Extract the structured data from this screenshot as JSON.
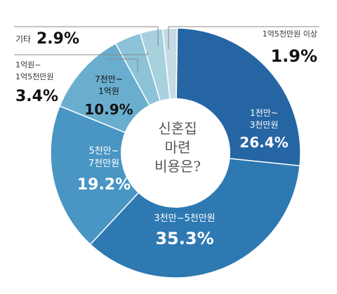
{
  "chart_data": {
    "type": "pie",
    "donut": true,
    "center_label": [
      "신혼집",
      "마련",
      "비용은?"
    ],
    "slices": [
      {
        "label": "1억5천만원 이상",
        "value": 1.9,
        "value_text": "1.9%",
        "color": "#c5dbe4"
      },
      {
        "label": "1천만~ 3천만원",
        "value": 26.4,
        "value_text": "26.4%",
        "color": "#2565a3"
      },
      {
        "label": "3천만~5천만원",
        "value": 35.3,
        "value_text": "35.3%",
        "color": "#2e79b2"
      },
      {
        "label": "5천만~ 7천만원",
        "value": 19.2,
        "value_text": "19.2%",
        "color": "#4995c3"
      },
      {
        "label": "7천만~ 1억원",
        "value": 10.9,
        "value_text": "10.9%",
        "color": "#6aaecf"
      },
      {
        "label": "1억원~ 1억5천만원",
        "value": 3.4,
        "value_text": "3.4%",
        "color": "#8cc3d8"
      },
      {
        "label": "기타",
        "value": 2.9,
        "value_text": "2.9%",
        "color": "#a8d1de"
      }
    ]
  }
}
